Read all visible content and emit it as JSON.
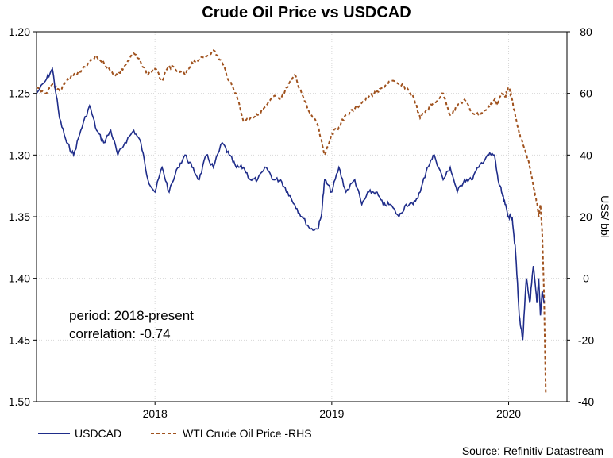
{
  "chart_data": {
    "type": "line",
    "title": "Crude Oil Price vs USDCAD",
    "y_left": {
      "ticks": [
        "1.20",
        "1.25",
        "1.30",
        "1.35",
        "1.40",
        "1.45",
        "1.50"
      ],
      "range": [
        1.2,
        1.5
      ],
      "inverted": true
    },
    "y_right": {
      "label": "US$/ bbl",
      "ticks": [
        "80",
        "60",
        "40",
        "20",
        "0",
        "-20",
        "-40"
      ],
      "range": [
        -40,
        80
      ]
    },
    "x_ticks": [
      {
        "label": "2018",
        "t": 2018.0
      },
      {
        "label": "2019",
        "t": 2019.0
      },
      {
        "label": "2020",
        "t": 2020.0
      }
    ],
    "x_range": [
      2017.33,
      2020.33
    ],
    "annotations": [
      "period: 2018-present",
      "correlation: -0.74"
    ],
    "legend": [
      "USDCAD",
      "WTI Crude Oil Price -RHS"
    ],
    "source": "Source: Refinitiv Datastream",
    "series": [
      {
        "name": "USDCAD",
        "axis": "left",
        "color": "#1f2d8a",
        "style": "solid",
        "t": [
          2017.33,
          2017.38,
          2017.42,
          2017.46,
          2017.5,
          2017.54,
          2017.58,
          2017.63,
          2017.67,
          2017.71,
          2017.75,
          2017.79,
          2017.83,
          2017.88,
          2017.92,
          2017.96,
          2018.0,
          2018.04,
          2018.08,
          2018.13,
          2018.17,
          2018.21,
          2018.25,
          2018.29,
          2018.33,
          2018.38,
          2018.42,
          2018.46,
          2018.5,
          2018.54,
          2018.58,
          2018.63,
          2018.67,
          2018.71,
          2018.75,
          2018.79,
          2018.83,
          2018.88,
          2018.92,
          2018.94,
          2018.96,
          2019.0,
          2019.04,
          2019.08,
          2019.13,
          2019.17,
          2019.21,
          2019.25,
          2019.29,
          2019.33,
          2019.38,
          2019.42,
          2019.46,
          2019.5,
          2019.54,
          2019.58,
          2019.63,
          2019.67,
          2019.71,
          2019.75,
          2019.79,
          2019.83,
          2019.88,
          2019.92,
          2019.94,
          2019.96,
          2019.98,
          2020.0,
          2020.02,
          2020.04,
          2020.06,
          2020.08,
          2020.1,
          2020.12,
          2020.14,
          2020.16
        ],
        "values": [
          1.25,
          1.24,
          1.23,
          1.27,
          1.29,
          1.3,
          1.28,
          1.26,
          1.28,
          1.29,
          1.28,
          1.3,
          1.29,
          1.28,
          1.29,
          1.32,
          1.33,
          1.31,
          1.33,
          1.31,
          1.3,
          1.31,
          1.32,
          1.3,
          1.31,
          1.29,
          1.3,
          1.31,
          1.31,
          1.32,
          1.32,
          1.31,
          1.32,
          1.32,
          1.33,
          1.34,
          1.35,
          1.36,
          1.36,
          1.35,
          1.32,
          1.33,
          1.31,
          1.33,
          1.32,
          1.34,
          1.33,
          1.33,
          1.34,
          1.34,
          1.35,
          1.34,
          1.34,
          1.33,
          1.31,
          1.3,
          1.32,
          1.31,
          1.33,
          1.32,
          1.32,
          1.31,
          1.3,
          1.3,
          1.32,
          1.33,
          1.34,
          1.35,
          1.35,
          1.38,
          1.43,
          1.45,
          1.4,
          1.42,
          1.39,
          1.42
        ]
      },
      {
        "name": "WTI Crude Oil Price -RHS",
        "axis": "right",
        "color": "#a0521e",
        "style": "dashed",
        "t": [
          2017.33,
          2017.38,
          2017.42,
          2017.46,
          2017.5,
          2017.54,
          2017.58,
          2017.63,
          2017.67,
          2017.71,
          2017.75,
          2017.79,
          2017.83,
          2017.88,
          2017.92,
          2017.96,
          2018.0,
          2018.04,
          2018.08,
          2018.13,
          2018.17,
          2018.21,
          2018.25,
          2018.29,
          2018.33,
          2018.38,
          2018.42,
          2018.46,
          2018.5,
          2018.54,
          2018.58,
          2018.63,
          2018.67,
          2018.71,
          2018.75,
          2018.79,
          2018.83,
          2018.88,
          2018.92,
          2018.94,
          2018.96,
          2019.0,
          2019.04,
          2019.08,
          2019.13,
          2019.17,
          2019.21,
          2019.25,
          2019.29,
          2019.33,
          2019.38,
          2019.42,
          2019.46,
          2019.5,
          2019.54,
          2019.58,
          2019.63,
          2019.67,
          2019.71,
          2019.75,
          2019.79,
          2019.83,
          2019.88,
          2019.92,
          2019.94,
          2019.96,
          2019.98,
          2020.0,
          2020.02,
          2020.04,
          2020.06,
          2020.08,
          2020.1,
          2020.12,
          2020.14,
          2020.16
        ],
        "values": [
          62,
          60,
          63,
          61,
          64,
          66,
          67,
          70,
          72,
          70,
          67,
          66,
          69,
          73,
          70,
          66,
          68,
          64,
          69,
          67,
          66,
          70,
          71,
          72,
          74,
          70,
          64,
          60,
          51,
          52,
          53,
          56,
          59,
          58,
          62,
          66,
          60,
          53,
          50,
          45,
          40,
          47,
          49,
          53,
          55,
          57,
          59,
          60,
          62,
          64,
          63,
          62,
          59,
          52,
          55,
          57,
          60,
          53,
          56,
          58,
          54,
          53,
          55,
          58,
          57,
          60,
          59,
          62,
          58,
          52,
          47,
          44,
          40,
          36,
          30,
          25
        ]
      }
    ],
    "series_end_extension_note": "",
    "usd_tail": {
      "t": [
        2020.17,
        2020.18,
        2020.19,
        2020.2
      ],
      "values": [
        1.4,
        1.43,
        1.41,
        1.42
      ]
    },
    "wti_tail": {
      "t": [
        2020.17,
        2020.18,
        2020.19,
        2020.2,
        2020.21
      ],
      "values": [
        20,
        24,
        15,
        -5,
        -37
      ]
    }
  }
}
